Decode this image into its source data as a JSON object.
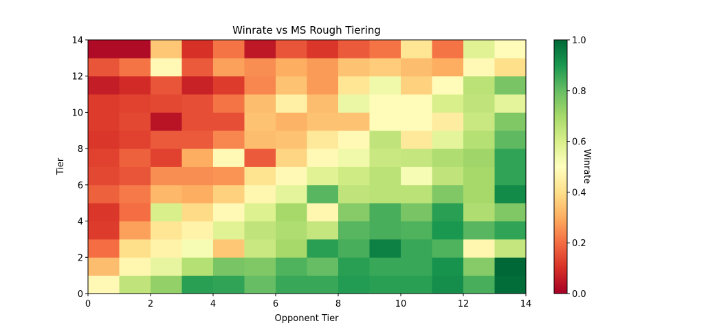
{
  "chart_data": {
    "type": "heatmap",
    "title": "Winrate vs MS Rough Tiering",
    "xlabel": "Opponent Tier",
    "ylabel": "Tier",
    "xlim": [
      0,
      14
    ],
    "ylim": [
      0,
      14
    ],
    "x_ticks": [
      "0",
      "2",
      "4",
      "6",
      "8",
      "10",
      "12",
      "14"
    ],
    "y_ticks": [
      "0",
      "2",
      "4",
      "6",
      "8",
      "10",
      "12",
      "14"
    ],
    "colorbar": {
      "label": "Winrate",
      "ticks": [
        "0.0",
        "0.2",
        "0.4",
        "0.6",
        "0.8",
        "1.0"
      ],
      "range": [
        0,
        1
      ],
      "colormap": "RdYlGn"
    },
    "values": [
      [
        0.48,
        0.65,
        0.73,
        0.88,
        0.87,
        0.8,
        0.86,
        0.86,
        0.89,
        0.88,
        0.88,
        0.92,
        0.84,
        0.99
      ],
      [
        0.33,
        0.47,
        0.56,
        0.67,
        0.77,
        0.76,
        0.83,
        0.8,
        0.88,
        0.86,
        0.86,
        0.91,
        0.75,
        1.0
      ],
      [
        0.2,
        0.4,
        0.46,
        0.52,
        0.35,
        0.63,
        0.7,
        0.88,
        0.84,
        0.95,
        0.86,
        0.83,
        0.47,
        0.64
      ],
      [
        0.12,
        0.28,
        0.42,
        0.46,
        0.58,
        0.65,
        0.68,
        0.64,
        0.82,
        0.84,
        0.83,
        0.9,
        0.82,
        0.87
      ],
      [
        0.11,
        0.2,
        0.6,
        0.39,
        0.48,
        0.59,
        0.7,
        0.47,
        0.75,
        0.84,
        0.77,
        0.88,
        0.68,
        0.76
      ],
      [
        0.18,
        0.22,
        0.32,
        0.3,
        0.37,
        0.47,
        0.57,
        0.82,
        0.65,
        0.66,
        0.66,
        0.76,
        0.7,
        0.93
      ],
      [
        0.14,
        0.16,
        0.25,
        0.25,
        0.26,
        0.41,
        0.48,
        0.58,
        0.62,
        0.66,
        0.52,
        0.65,
        0.7,
        0.87
      ],
      [
        0.13,
        0.18,
        0.13,
        0.3,
        0.48,
        0.17,
        0.38,
        0.48,
        0.54,
        0.63,
        0.64,
        0.68,
        0.71,
        0.87
      ],
      [
        0.11,
        0.13,
        0.17,
        0.17,
        0.24,
        0.33,
        0.34,
        0.43,
        0.48,
        0.65,
        0.43,
        0.57,
        0.67,
        0.81
      ],
      [
        0.12,
        0.14,
        0.04,
        0.15,
        0.15,
        0.34,
        0.31,
        0.34,
        0.34,
        0.49,
        0.49,
        0.44,
        0.63,
        0.76
      ],
      [
        0.12,
        0.13,
        0.14,
        0.15,
        0.21,
        0.33,
        0.45,
        0.33,
        0.55,
        0.49,
        0.49,
        0.6,
        0.65,
        0.57
      ],
      [
        0.06,
        0.09,
        0.16,
        0.07,
        0.12,
        0.24,
        0.34,
        0.27,
        0.42,
        0.54,
        0.37,
        0.49,
        0.66,
        0.77
      ],
      [
        0.16,
        0.21,
        0.48,
        0.17,
        0.28,
        0.25,
        0.3,
        0.27,
        0.34,
        0.36,
        0.33,
        0.3,
        0.48,
        0.4
      ],
      [
        0.02,
        0.02,
        0.35,
        0.1,
        0.21,
        0.05,
        0.16,
        0.11,
        0.17,
        0.21,
        0.42,
        0.21,
        0.58,
        0.49
      ]
    ]
  }
}
